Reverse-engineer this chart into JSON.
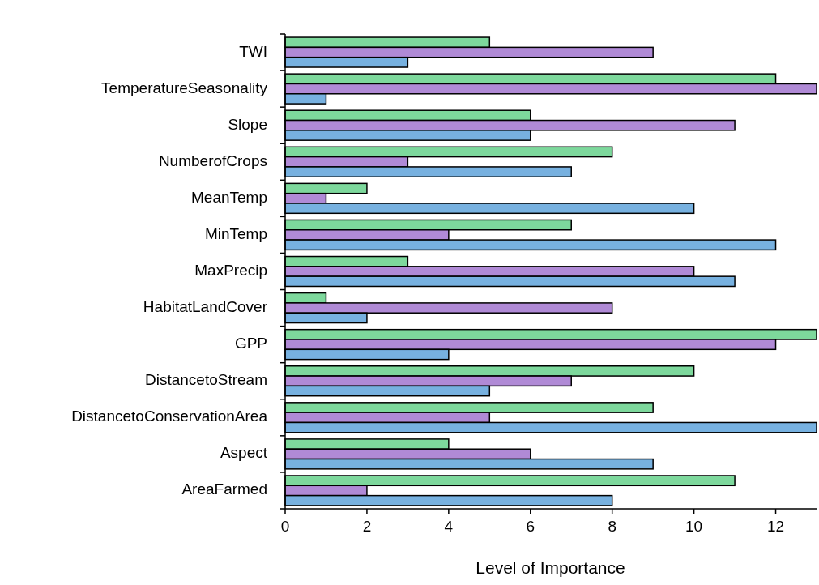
{
  "chart_data": {
    "type": "bar",
    "orientation": "horizontal",
    "xlabel": "Level of Importance",
    "categories": [
      "TWI",
      "TemperatureSeasonality",
      "Slope",
      "NumberofCrops",
      "MeanTemp",
      "MinTemp",
      "MaxPrecip",
      "HabitatLandCover",
      "GPP",
      "DistancetoStream",
      "DistancetoConservationArea",
      "Aspect",
      "AreaFarmed"
    ],
    "series": [
      {
        "color": "#7dd89c",
        "values": [
          5,
          12,
          6,
          8,
          2,
          7,
          3,
          1,
          13,
          10,
          9,
          4,
          11
        ]
      },
      {
        "color": "#b08ad6",
        "values": [
          9,
          13,
          11,
          3,
          1,
          4,
          10,
          8,
          12,
          7,
          5,
          6,
          2
        ]
      },
      {
        "color": "#77b1e0",
        "values": [
          3,
          1,
          6,
          7,
          10,
          12,
          11,
          2,
          4,
          5,
          13,
          9,
          8
        ]
      }
    ],
    "xlim": [
      0,
      13
    ],
    "xticks": [
      0,
      2,
      4,
      6,
      8,
      10,
      12
    ]
  }
}
